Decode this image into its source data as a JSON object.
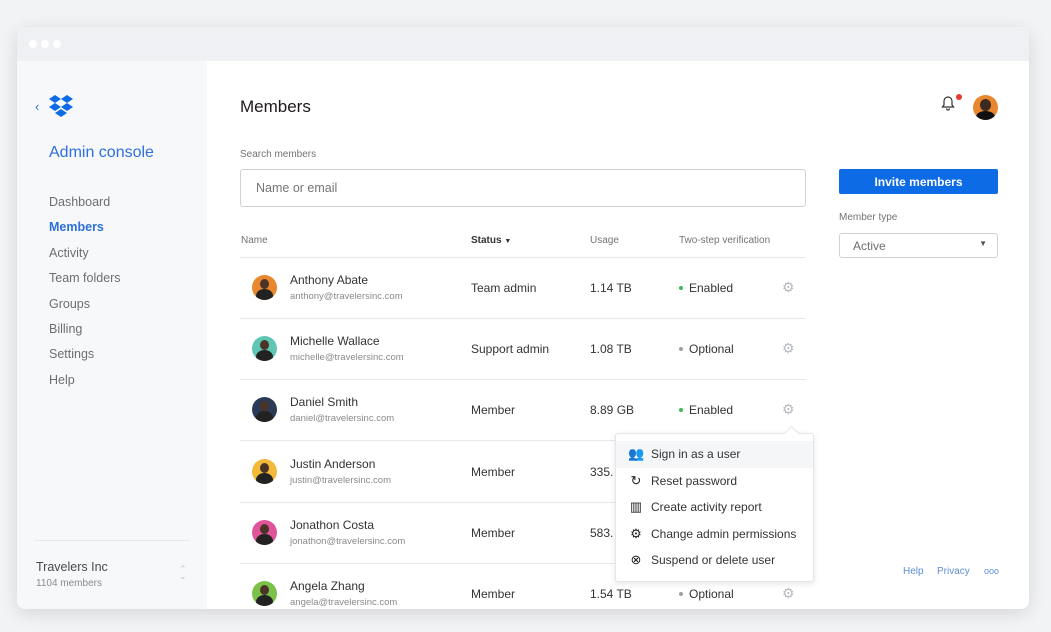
{
  "sidebar": {
    "back_icon": "chevron-left-icon",
    "logo": "dropbox-logo",
    "title": "Admin console",
    "items": [
      {
        "label": "Dashboard"
      },
      {
        "label": "Members",
        "active": true
      },
      {
        "label": "Activity"
      },
      {
        "label": "Team folders"
      },
      {
        "label": "Groups"
      },
      {
        "label": "Billing"
      },
      {
        "label": "Settings"
      },
      {
        "label": "Help"
      }
    ],
    "team": {
      "name": "Travelers Inc",
      "count": "1104 members"
    }
  },
  "header": {
    "title": "Members",
    "notification_icon": "bell-icon",
    "has_notification": true
  },
  "search": {
    "label": "Search members",
    "placeholder": "Name or email"
  },
  "table": {
    "columns": {
      "name": "Name",
      "status": "Status",
      "usage": "Usage",
      "twostep": "Two-step verification"
    },
    "rows": [
      {
        "name": "Anthony Abate",
        "email": "anthony@travelersinc.com",
        "status": "Team admin",
        "usage": "1.14 TB",
        "twostep": "Enabled",
        "avatar_color": "#e8872e"
      },
      {
        "name": "Michelle Wallace",
        "email": "michelle@travelersinc.com",
        "status": "Support admin",
        "usage": "1.08 TB",
        "twostep": "Optional",
        "avatar_color": "#5fc6b4"
      },
      {
        "name": "Daniel Smith",
        "email": "daniel@travelersinc.com",
        "status": "Member",
        "usage": "8.89 GB",
        "twostep": "Enabled",
        "avatar_color": "#2b3a55"
      },
      {
        "name": "Justin Anderson",
        "email": "justin@travelersinc.com",
        "status": "Member",
        "usage": "335.",
        "twostep": "",
        "avatar_color": "#f2b93b"
      },
      {
        "name": "Jonathon Costa",
        "email": "jonathon@travelersinc.com",
        "status": "Member",
        "usage": "583.",
        "twostep": "",
        "avatar_color": "#e0559a"
      },
      {
        "name": "Angela Zhang",
        "email": "angela@travelersinc.com",
        "status": "Member",
        "usage": "1.54 TB",
        "twostep": "Optional",
        "avatar_color": "#7cc24a"
      }
    ]
  },
  "context_menu": {
    "items": [
      {
        "label": "Sign in as a user",
        "icon": "users-icon"
      },
      {
        "label": "Reset password",
        "icon": "refresh-icon"
      },
      {
        "label": "Create activity report",
        "icon": "report-icon"
      },
      {
        "label": "Change admin permissions",
        "icon": "gear-icon"
      },
      {
        "label": "Suspend or delete user",
        "icon": "x-circle-icon"
      }
    ]
  },
  "actions": {
    "invite": "Invite members",
    "member_type_label": "Member type",
    "member_type_value": "Active"
  },
  "footer": {
    "help": "Help",
    "privacy": "Privacy",
    "more": "ooo"
  },
  "colors": {
    "accent": "#0d6be6",
    "enabled": "#3fb950",
    "optional": "#a0a0a0",
    "notification": "#e53935"
  }
}
